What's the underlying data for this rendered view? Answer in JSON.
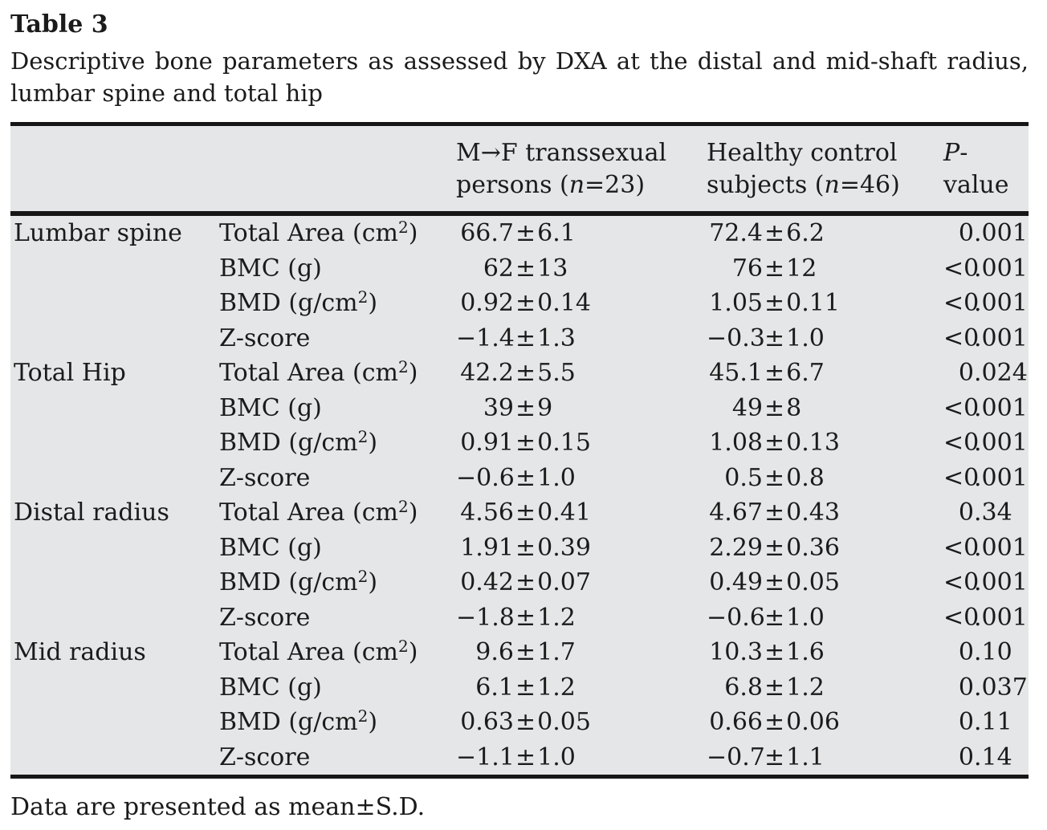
{
  "page": {
    "title": "Table 3",
    "caption_line1": "Descriptive bone parameters as assessed by DXA at the distal and mid-shaft radius,",
    "caption_line2": "lumbar spine and total hip",
    "footnote": "Data are presented as mean±S.D."
  },
  "colors": {
    "table_background": "#e5e6e7",
    "rule": "#161616",
    "text": "#1b1b1b"
  },
  "header": {
    "col_mf": {
      "line1": "M→F transsexual",
      "line2_pre": "persons (",
      "line2_italic": "n",
      "line2_post": "=23)"
    },
    "col_control": {
      "line1": "Healthy control",
      "line2_pre": "subjects (",
      "line2_italic": "n",
      "line2_post": "=46)"
    },
    "col_p": {
      "italic": "P",
      "rest": "-value"
    }
  },
  "rows": [
    {
      "region": "Lumbar spine",
      "param_pre": "Total Area (cm",
      "param_sup": "2",
      "param_post": ")",
      "mf": "66.7±6.1",
      "control": "72.4±6.2",
      "p": "0.001"
    },
    {
      "region": "",
      "param_pre": "BMC (g)",
      "param_sup": "",
      "param_post": "",
      "mf": "62±13",
      "control": "76±12",
      "p": "<0.001"
    },
    {
      "region": "",
      "param_pre": "BMD (g/cm",
      "param_sup": "2",
      "param_post": ")",
      "mf": "0.92±0.14",
      "control": "1.05±0.11",
      "p": "<0.001"
    },
    {
      "region": "",
      "param_pre": "Z-score",
      "param_sup": "",
      "param_post": "",
      "mf": "−1.4±1.3",
      "control": "−0.3±1.0",
      "p": "<0.001"
    },
    {
      "region": "Total Hip",
      "param_pre": "Total Area (cm",
      "param_sup": "2",
      "param_post": ")",
      "mf": "42.2±5.5",
      "control": "45.1±6.7",
      "p": "0.024"
    },
    {
      "region": "",
      "param_pre": "BMC (g)",
      "param_sup": "",
      "param_post": "",
      "mf": "39±9",
      "control": "49±8",
      "p": "<0.001"
    },
    {
      "region": "",
      "param_pre": "BMD (g/cm",
      "param_sup": "2",
      "param_post": ")",
      "mf": "0.91±0.15",
      "control": "1.08±0.13",
      "p": "<0.001"
    },
    {
      "region": "",
      "param_pre": "Z-score",
      "param_sup": "",
      "param_post": "",
      "mf": "−0.6±1.0",
      "control": "0.5±0.8",
      "p": "<0.001"
    },
    {
      "region": "Distal radius",
      "param_pre": "Total Area (cm",
      "param_sup": "2",
      "param_post": ")",
      "mf": "4.56±0.41",
      "control": "4.67±0.43",
      "p": "0.34"
    },
    {
      "region": "",
      "param_pre": "BMC (g)",
      "param_sup": "",
      "param_post": "",
      "mf": "1.91±0.39",
      "control": "2.29±0.36",
      "p": "<0.001"
    },
    {
      "region": "",
      "param_pre": "BMD (g/cm",
      "param_sup": "2",
      "param_post": ")",
      "mf": "0.42±0.07",
      "control": "0.49±0.05",
      "p": "<0.001"
    },
    {
      "region": "",
      "param_pre": "Z-score",
      "param_sup": "",
      "param_post": "",
      "mf": "−1.8±1.2",
      "control": "−0.6±1.0",
      "p": "<0.001"
    },
    {
      "region": "Mid radius",
      "param_pre": "Total Area (cm",
      "param_sup": "2",
      "param_post": ")",
      "mf": "9.6±1.7",
      "control": "10.3±1.6",
      "p": "0.10"
    },
    {
      "region": "",
      "param_pre": "BMC (g)",
      "param_sup": "",
      "param_post": "",
      "mf": "6.1±1.2",
      "control": "6.8±1.2",
      "p": "0.037"
    },
    {
      "region": "",
      "param_pre": "BMD (g/cm",
      "param_sup": "2",
      "param_post": ")",
      "mf": "0.63±0.05",
      "control": "0.66±0.06",
      "p": "0.11"
    },
    {
      "region": "",
      "param_pre": "Z-score",
      "param_sup": "",
      "param_post": "",
      "mf": "−1.1±1.0",
      "control": "−0.7±1.1",
      "p": "0.14"
    }
  ]
}
